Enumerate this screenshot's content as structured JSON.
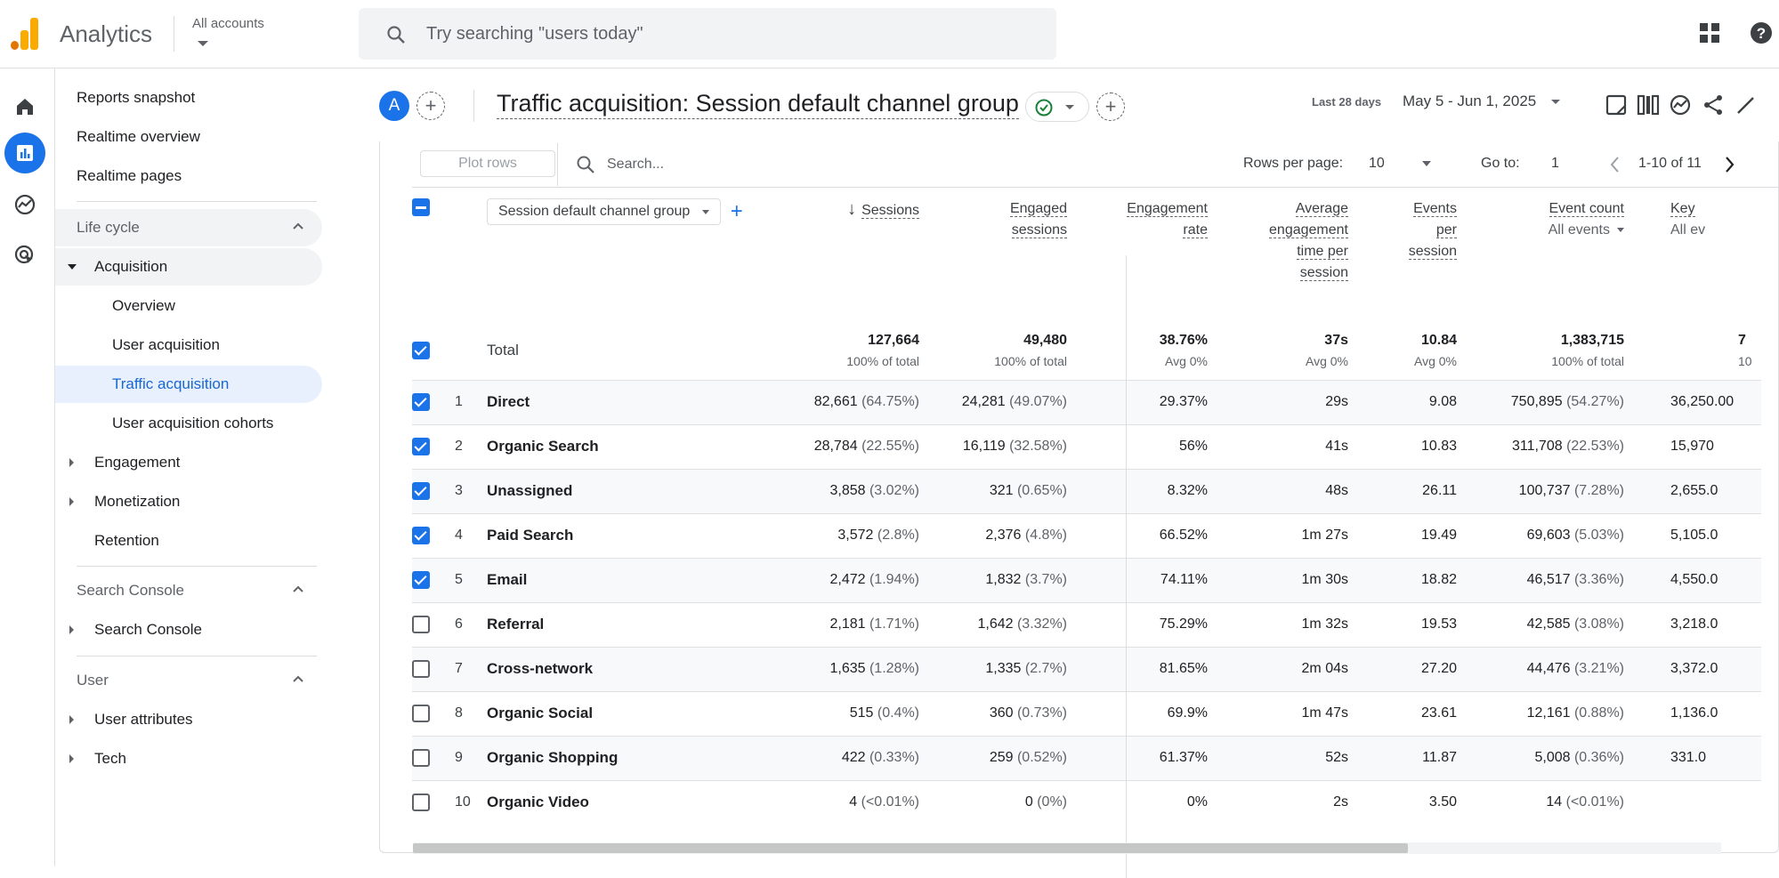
{
  "app": {
    "name": "Analytics",
    "accounts_label": "All accounts"
  },
  "search": {
    "placeholder": "Try searching \"users today\""
  },
  "sidebar": {
    "top": [
      "Reports snapshot",
      "Realtime overview",
      "Realtime pages"
    ],
    "lifecycle_title": "Life cycle",
    "acquisition": "Acquisition",
    "acq_items": [
      "Overview",
      "User acquisition",
      "Traffic acquisition",
      "User acquisition cohorts"
    ],
    "engagement": "Engagement",
    "monetization": "Monetization",
    "retention": "Retention",
    "search_console_title": "Search Console",
    "search_console": "Search Console",
    "user_title": "User",
    "user_attributes": "User attributes",
    "tech": "Tech"
  },
  "header": {
    "avatar": "A",
    "title": "Traffic acquisition: Session default channel group",
    "date_badge": "Last 28 days",
    "date_range": "May 5 - Jun 1, 2025"
  },
  "toolbar": {
    "plot_rows": "Plot rows",
    "search_placeholder": "Search...",
    "rows_per_page_label": "Rows per page:",
    "rows_per_page": "10",
    "goto_label": "Go to:",
    "goto_value": "1",
    "page_range": "1-10 of 11"
  },
  "table": {
    "dimension": "Session default channel group",
    "columns": {
      "sessions": "Sessions",
      "engaged_sessions": [
        "Engaged",
        "sessions"
      ],
      "engagement_rate": [
        "Engagement",
        "rate"
      ],
      "avg_time": [
        "Average",
        "engagement",
        "time per",
        "session"
      ],
      "events_per_session": [
        "Events",
        "per",
        "session"
      ],
      "event_count": "Event count",
      "event_count_filter": "All events",
      "key": "Key",
      "key_filter": "All ev"
    },
    "total": {
      "label": "Total",
      "sessions": "127,664",
      "sessions_sub": "100% of total",
      "engaged": "49,480",
      "engaged_sub": "100% of total",
      "rate": "38.76%",
      "rate_sub": "Avg 0%",
      "time": "37s",
      "time_sub": "Avg 0%",
      "eps": "10.84",
      "eps_sub": "Avg 0%",
      "events": "1,383,715",
      "events_sub": "100% of total",
      "key": "7",
      "key_sub": "10"
    },
    "rows": [
      {
        "n": "1",
        "checked": true,
        "name": "Direct",
        "sessions": "82,661",
        "sp": "(64.75%)",
        "engaged": "24,281",
        "ep": "(49.07%)",
        "rate": "29.37%",
        "time": "29s",
        "eps": "9.08",
        "events": "750,895",
        "evp": "(54.27%)",
        "key": "36,250.00"
      },
      {
        "n": "2",
        "checked": true,
        "name": "Organic Search",
        "sessions": "28,784",
        "sp": "(22.55%)",
        "engaged": "16,119",
        "ep": "(32.58%)",
        "rate": "56%",
        "time": "41s",
        "eps": "10.83",
        "events": "311,708",
        "evp": "(22.53%)",
        "key": "15,970"
      },
      {
        "n": "3",
        "checked": true,
        "name": "Unassigned",
        "sessions": "3,858",
        "sp": "(3.02%)",
        "engaged": "321",
        "ep": "(0.65%)",
        "rate": "8.32%",
        "time": "48s",
        "eps": "26.11",
        "events": "100,737",
        "evp": "(7.28%)",
        "key": "2,655.0"
      },
      {
        "n": "4",
        "checked": true,
        "name": "Paid Search",
        "sessions": "3,572",
        "sp": "(2.8%)",
        "engaged": "2,376",
        "ep": "(4.8%)",
        "rate": "66.52%",
        "time": "1m 27s",
        "eps": "19.49",
        "events": "69,603",
        "evp": "(5.03%)",
        "key": "5,105.0"
      },
      {
        "n": "5",
        "checked": true,
        "name": "Email",
        "sessions": "2,472",
        "sp": "(1.94%)",
        "engaged": "1,832",
        "ep": "(3.7%)",
        "rate": "74.11%",
        "time": "1m 30s",
        "eps": "18.82",
        "events": "46,517",
        "evp": "(3.36%)",
        "key": "4,550.0"
      },
      {
        "n": "6",
        "checked": false,
        "name": "Referral",
        "sessions": "2,181",
        "sp": "(1.71%)",
        "engaged": "1,642",
        "ep": "(3.32%)",
        "rate": "75.29%",
        "time": "1m 32s",
        "eps": "19.53",
        "events": "42,585",
        "evp": "(3.08%)",
        "key": "3,218.0"
      },
      {
        "n": "7",
        "checked": false,
        "name": "Cross-network",
        "sessions": "1,635",
        "sp": "(1.28%)",
        "engaged": "1,335",
        "ep": "(2.7%)",
        "rate": "81.65%",
        "time": "2m 04s",
        "eps": "27.20",
        "events": "44,476",
        "evp": "(3.21%)",
        "key": "3,372.0"
      },
      {
        "n": "8",
        "checked": false,
        "name": "Organic Social",
        "sessions": "515",
        "sp": "(0.4%)",
        "engaged": "360",
        "ep": "(0.73%)",
        "rate": "69.9%",
        "time": "1m 47s",
        "eps": "23.61",
        "events": "12,161",
        "evp": "(0.88%)",
        "key": "1,136.0"
      },
      {
        "n": "9",
        "checked": false,
        "name": "Organic Shopping",
        "sessions": "422",
        "sp": "(0.33%)",
        "engaged": "259",
        "ep": "(0.52%)",
        "rate": "61.37%",
        "time": "52s",
        "eps": "11.87",
        "events": "5,008",
        "evp": "(0.36%)",
        "key": "331.0"
      },
      {
        "n": "10",
        "checked": false,
        "name": "Organic Video",
        "sessions": "4",
        "sp": "(<0.01%)",
        "engaged": "0",
        "ep": "(0%)",
        "rate": "0%",
        "time": "2s",
        "eps": "3.50",
        "events": "14",
        "evp": "(<0.01%)",
        "key": ""
      }
    ]
  },
  "icons": {
    "search": "search-icon",
    "apps": "apps-grid-icon",
    "help": "help-icon",
    "home": "home-icon",
    "reports": "reports-icon",
    "explore": "explore-icon",
    "advertising": "advertising-icon"
  },
  "colors": {
    "accent": "#1a73e8",
    "logo_orange": "#f9ab00",
    "logo_dark": "#e37400"
  }
}
